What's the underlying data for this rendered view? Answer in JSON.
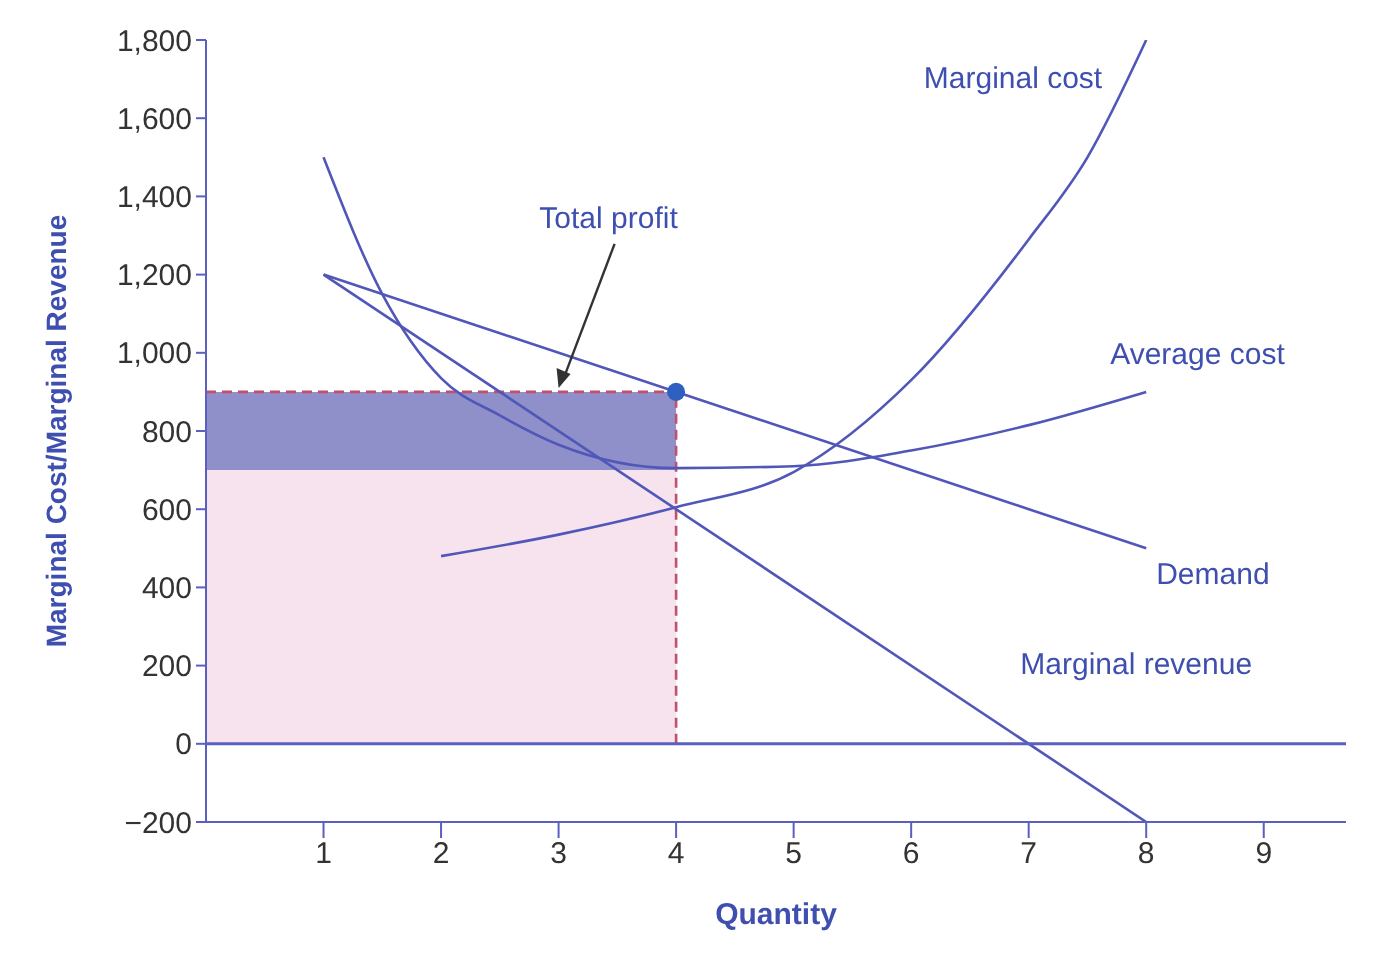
{
  "chart_data": {
    "type": "line",
    "xlabel": "Quantity",
    "ylabel": "Marginal Cost/Marginal Revenue",
    "xlim": [
      0,
      9.7
    ],
    "xticks": [
      1,
      2,
      3,
      4,
      5,
      6,
      7,
      8,
      9
    ],
    "ylim": [
      -200,
      1800
    ],
    "yticks": [
      {
        "value": -200,
        "label": "−200"
      },
      0,
      200,
      400,
      600,
      800,
      {
        "value": 1000,
        "label": "1,000"
      },
      {
        "value": 1200,
        "label": "1,200"
      },
      {
        "value": 1400,
        "label": "1,400"
      },
      {
        "value": 1600,
        "label": "1,600"
      },
      {
        "value": 1800,
        "label": "1,800"
      }
    ],
    "grid": false,
    "legend": false,
    "stacked": true,
    "marker": "none",
    "annotations": [
      {
        "text": "Total profit",
        "x": 3,
        "y": 900
      }
    ],
    "ref_lines": [
      {
        "axis": "y",
        "value": 0,
        "color": "#5a5fc0"
      }
    ],
    "series": [
      {
        "type": "area",
        "color": "#f6e3ee",
        "x": [
          0,
          4
        ],
        "values": [
          700,
          700
        ]
      },
      {
        "type": "area",
        "color": "#8f90c9",
        "x": [
          0,
          4
        ],
        "values": [
          200,
          200
        ]
      },
      {
        "color": "#c0506e",
        "line_style": "dashed",
        "x": [
          0,
          4
        ],
        "values": [
          900,
          900
        ]
      },
      {
        "color": "#c0506e",
        "line_style": "dashed",
        "x": [
          4,
          4
        ],
        "values": [
          0,
          900
        ]
      },
      {
        "name": "Demand",
        "color": "#5157b8",
        "x": [
          1,
          8
        ],
        "values": [
          1200,
          500
        ]
      },
      {
        "name": "Marginal revenue",
        "color": "#5157b8",
        "x": [
          1,
          8
        ],
        "values": [
          1200,
          -200
        ]
      },
      {
        "name": "Average cost",
        "color": "#5157b8",
        "x": [
          1,
          1.5,
          2,
          2.5,
          3,
          4,
          5,
          6,
          7,
          8
        ],
        "values": [
          1500,
          1150,
          935,
          840,
          765,
          705,
          710,
          750,
          815,
          900
        ]
      },
      {
        "name": "Marginal cost",
        "color": "#5157b8",
        "x": [
          2,
          3,
          4,
          5,
          6,
          7,
          7.5,
          8
        ],
        "values": [
          480,
          535,
          605,
          695,
          930,
          1290,
          1500,
          1800
        ]
      },
      {
        "type": "scatter",
        "color": "#2f5fc0",
        "marker": "circle",
        "x": [
          4
        ],
        "values": [
          900
        ]
      }
    ]
  }
}
